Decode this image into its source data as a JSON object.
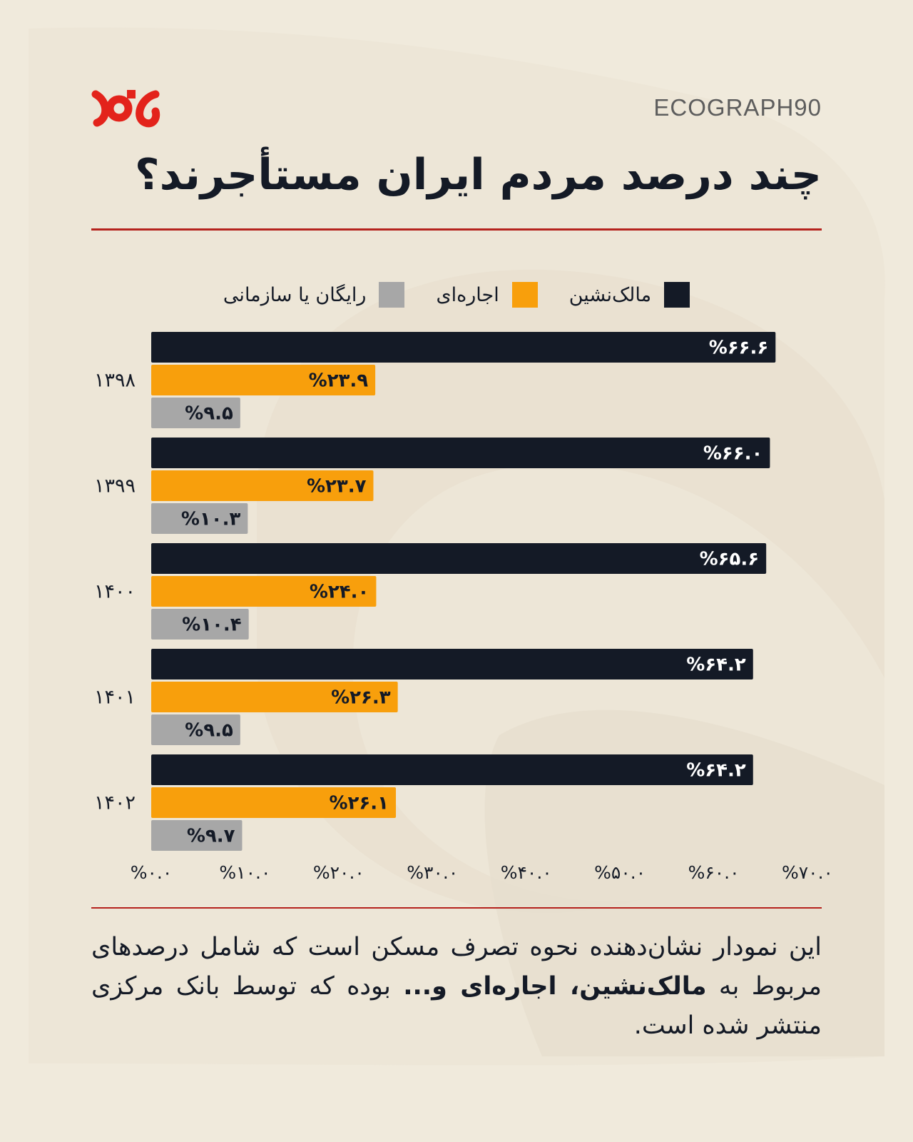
{
  "brand": "ECOGRAPH90",
  "logo": {
    "icon": "noud-logo",
    "color": "#e3231b"
  },
  "title": "چند درصد مردم ایران مستأجرند؟",
  "caption": {
    "part1": "این نمودار نشان‌دهنده نحوه تصرف مسکن است که شامل درصدهای مربوط به ",
    "bold": "مالک‌نشین، اجاره‌ای و...",
    "part2": " بوده که توسط بانک مرکزی منتشر شده است."
  },
  "colors": {
    "background": "#f0eadc",
    "accent_rule": "#b5221d",
    "owner": "#141a26",
    "rental": "#f89f0c",
    "free": "#a7a7a7"
  },
  "chart_data": {
    "type": "bar",
    "orientation": "horizontal",
    "categories": [
      "۱۳۹۸",
      "۱۳۹۹",
      "۱۴۰۰",
      "۱۴۰۱",
      "۱۴۰۲"
    ],
    "series": [
      {
        "name": "مالک‌نشین",
        "color": "#141a26",
        "values": [
          66.6,
          66.0,
          65.6,
          64.2,
          64.2
        ],
        "labels": [
          "%۶۶.۶",
          "%۶۶.۰",
          "%۶۵.۶",
          "%۶۴.۲",
          "%۶۴.۲"
        ]
      },
      {
        "name": "اجاره‌ای",
        "color": "#f89f0c",
        "values": [
          23.9,
          23.7,
          24.0,
          26.3,
          26.1
        ],
        "labels": [
          "%۲۳.۹",
          "%۲۳.۷",
          "%۲۴.۰",
          "%۲۶.۳",
          "%۲۶.۱"
        ]
      },
      {
        "name": "رایگان یا سازمانی",
        "color": "#a7a7a7",
        "values": [
          9.5,
          10.3,
          10.4,
          9.5,
          9.7
        ],
        "labels": [
          "%۹.۵",
          "%۱۰.۳",
          "%۱۰.۴",
          "%۹.۵",
          "%۹.۷"
        ]
      }
    ],
    "xlim": [
      0,
      70
    ],
    "xticks": [
      0,
      10,
      20,
      30,
      40,
      50,
      60,
      70
    ],
    "xtick_labels": [
      "%۰.۰",
      "%۱۰.۰",
      "%۲۰.۰",
      "%۳۰.۰",
      "%۴۰.۰",
      "%۵۰.۰",
      "%۶۰.۰",
      "%۷۰.۰"
    ],
    "legend_position": "top-center",
    "grid": false
  }
}
